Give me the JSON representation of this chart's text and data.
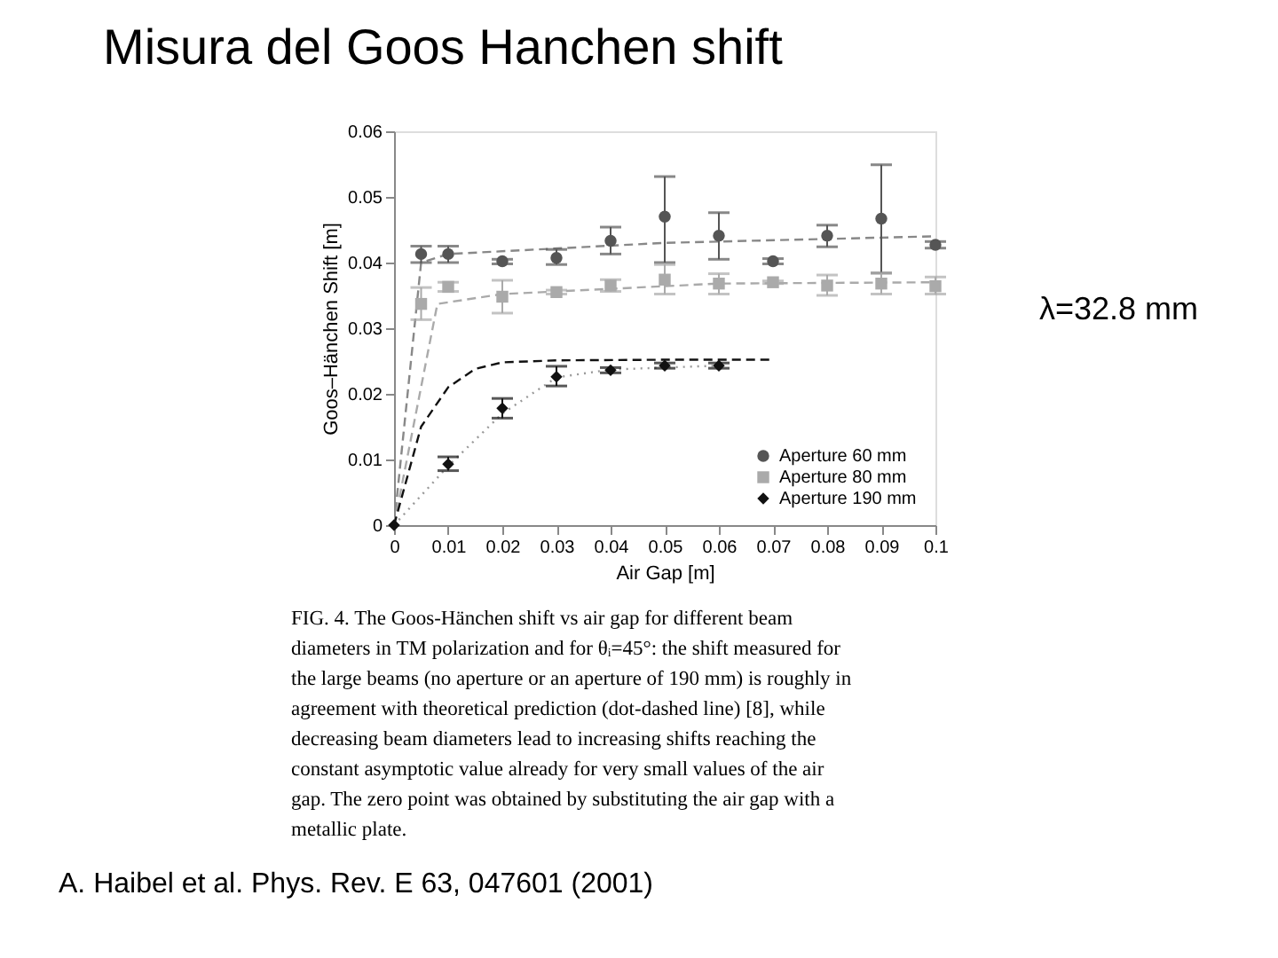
{
  "chart_data": {
    "type": "scatter",
    "title": "Misura del Goos Hanchen shift",
    "xlabel": "Air Gap [m]",
    "ylabel": "Goos–Hänchen Shift [m]",
    "xlim": [
      0,
      0.1
    ],
    "xticks": [
      0,
      0.01,
      0.02,
      0.03,
      0.04,
      0.05,
      0.06,
      0.07,
      0.08,
      0.09,
      0.1
    ],
    "ylim": [
      0,
      0.06
    ],
    "yticks": [
      0,
      0.01,
      0.02,
      0.03,
      0.04,
      0.05,
      0.06
    ],
    "grid": false,
    "legend": "bottom right",
    "series": [
      {
        "type": "line",
        "color": "#888888",
        "line_style": "dashed",
        "marker": "none",
        "x": [
          0,
          0.005,
          0.01,
          0.05,
          0.1
        ],
        "values": [
          0,
          0.04,
          0.0413,
          0.043,
          0.044
        ]
      },
      {
        "type": "line",
        "color": "#aaaaaa",
        "line_style": "dashed",
        "marker": "none",
        "x": [
          0,
          0.008,
          0.02,
          0.06,
          0.1
        ],
        "values": [
          0,
          0.0337,
          0.0352,
          0.0368,
          0.037
        ]
      },
      {
        "type": "line",
        "color": "#999999",
        "line_style": "dotted",
        "marker": "none",
        "x": [
          0,
          0.01,
          0.02,
          0.03,
          0.04,
          0.06
        ],
        "values": [
          0,
          0.009,
          0.017,
          0.0225,
          0.0237,
          0.0243
        ]
      },
      {
        "type": "line",
        "color": "#111111",
        "line_style": "dashed",
        "marker": "none",
        "x": [
          0,
          0.005,
          0.01,
          0.015,
          0.02,
          0.03,
          0.05,
          0.07
        ],
        "values": [
          0,
          0.015,
          0.021,
          0.0238,
          0.0248,
          0.0251,
          0.0252,
          0.0252
        ]
      },
      {
        "name": "Aperture 60 mm",
        "color": "#555555",
        "marker": "circle",
        "x": [
          0.005,
          0.01,
          0.02,
          0.03,
          0.04,
          0.05,
          0.06,
          0.07,
          0.08,
          0.09,
          0.1
        ],
        "values": [
          0.0413,
          0.0413,
          0.0402,
          0.0407,
          0.0433,
          0.047,
          0.0441,
          0.0402,
          0.0441,
          0.0467,
          0.0427
        ],
        "errors": [
          [
            0.04,
            0.0425
          ],
          [
            0.04,
            0.0425
          ],
          [
            0.0398,
            0.0405
          ],
          [
            0.0397,
            0.042
          ],
          [
            0.0413,
            0.0454
          ],
          [
            0.04,
            0.0531
          ],
          [
            0.0405,
            0.0476
          ],
          [
            0.0398,
            0.0406
          ],
          [
            0.0424,
            0.0457
          ],
          [
            0.0384,
            0.0549
          ],
          [
            0.0422,
            0.0432
          ]
        ]
      },
      {
        "name": "Aperture 80 mm",
        "color": "#aaaaaa",
        "marker": "square",
        "x": [
          0.005,
          0.01,
          0.02,
          0.03,
          0.04,
          0.05,
          0.06,
          0.07,
          0.08,
          0.09,
          0.1
        ],
        "values": [
          0.0337,
          0.0363,
          0.0348,
          0.0355,
          0.0365,
          0.0374,
          0.0368,
          0.037,
          0.0365,
          0.0368,
          0.0364
        ],
        "errors": [
          [
            0.0313,
            0.0362
          ],
          [
            0.0356,
            0.037
          ],
          [
            0.0323,
            0.0373
          ],
          [
            0.0352,
            0.0358
          ],
          [
            0.0356,
            0.0374
          ],
          [
            0.0352,
            0.0397
          ],
          [
            0.0352,
            0.0383
          ],
          [
            0.0368,
            0.0372
          ],
          [
            0.035,
            0.0381
          ],
          [
            0.0352,
            0.0384
          ],
          [
            0.0352,
            0.0378
          ]
        ]
      },
      {
        "name": "Aperture 190 mm",
        "color": "#111111",
        "marker": "diamond",
        "x": [
          0,
          0.01,
          0.02,
          0.03,
          0.04,
          0.05,
          0.06
        ],
        "values": [
          0,
          0.0093,
          0.0178,
          0.0226,
          0.0236,
          0.0243,
          0.0243
        ],
        "errors": [
          null,
          [
            0.0083,
            0.0104
          ],
          [
            0.0163,
            0.0193
          ],
          [
            0.0212,
            0.0242
          ],
          [
            0.0232,
            0.024
          ],
          [
            0.0239,
            0.0247
          ],
          [
            0.0239,
            0.0247
          ]
        ]
      }
    ],
    "annotations": [
      "λ=32.8 mm",
      "FIG. 4. The Goos-Hänchen shift vs air gap for different beam diameters in TM polarization and for θᵢ=45°: the shift measured for the large beams (no aperture or an aperture of 190 mm) is roughly in agreement with theoretical prediction (dot-dashed line) [8], while decreasing beam diameters lead to increasing shifts reaching the constant asymptotic value already for very small values of the air gap. The zero point was obtained by substituting the air gap with a metallic plate.",
      "A. Haibel et al. Phys. Rev. E 63, 047601 (2001)"
    ]
  }
}
